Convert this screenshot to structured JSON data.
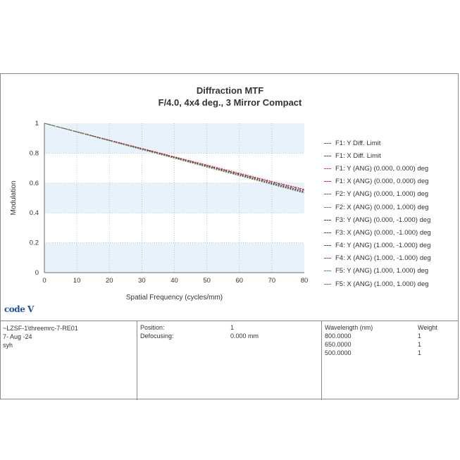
{
  "chart_data": {
    "type": "line",
    "title": "Diffraction MTF",
    "subtitle": "F/4.0, 4x4 deg., 3 Mirror Compact",
    "xlabel": "Spatial Frequency (cycles/mm)",
    "ylabel": "Modulation",
    "xlim": [
      0,
      80
    ],
    "ylim": [
      0,
      1
    ],
    "xticks": [
      "0",
      "10",
      "20",
      "30",
      "40",
      "50",
      "60",
      "70",
      "80"
    ],
    "yticks": [
      "0",
      "0.2",
      "0.4",
      "0.6",
      "0.8",
      "1"
    ],
    "legend_position": "right",
    "x": [
      0,
      10,
      20,
      30,
      40,
      50,
      60,
      70,
      80
    ],
    "series": [
      {
        "name": "F1: Y Diff. Limit",
        "color": "#3b5fb0",
        "values": [
          1,
          0.943,
          0.886,
          0.83,
          0.773,
          0.717,
          0.661,
          0.606,
          0.552
        ]
      },
      {
        "name": "F1: X Diff. Limit",
        "color": "#8b3a3a",
        "values": [
          1,
          0.943,
          0.886,
          0.83,
          0.773,
          0.717,
          0.661,
          0.606,
          0.552
        ]
      },
      {
        "name": "F1: Y (ANG) (0.000, 0.000) deg",
        "color": "#d94040",
        "values": [
          1,
          0.944,
          0.888,
          0.832,
          0.776,
          0.721,
          0.666,
          0.611,
          0.558
        ]
      },
      {
        "name": "F1: X (ANG) (0.000, 0.000) deg",
        "color": "#c03030",
        "values": [
          1,
          0.944,
          0.888,
          0.832,
          0.776,
          0.721,
          0.666,
          0.611,
          0.558
        ]
      },
      {
        "name": "F2: Y (ANG) (0.000, 1.000) deg",
        "color": "#2e8b3a",
        "values": [
          1,
          0.942,
          0.884,
          0.826,
          0.768,
          0.71,
          0.652,
          0.595,
          0.538
        ]
      },
      {
        "name": "F2: X (ANG) (0.000, 1.000) deg",
        "color": "#9b7a2a",
        "values": [
          1,
          0.943,
          0.885,
          0.828,
          0.771,
          0.714,
          0.657,
          0.6,
          0.545
        ]
      },
      {
        "name": "F3: Y (ANG) (0.000, -1.000) deg",
        "color": "#1f3f8f",
        "values": [
          1,
          0.942,
          0.884,
          0.827,
          0.769,
          0.711,
          0.654,
          0.597,
          0.54
        ]
      },
      {
        "name": "F3: X (ANG) (0.000, -1.000) deg",
        "color": "#7a2e6e",
        "values": [
          1,
          0.943,
          0.885,
          0.828,
          0.771,
          0.714,
          0.657,
          0.6,
          0.544
        ]
      },
      {
        "name": "F4: Y (ANG) (1.000, -1.000) deg",
        "color": "#4a4aa0",
        "values": [
          1,
          0.942,
          0.883,
          0.825,
          0.767,
          0.709,
          0.651,
          0.593,
          0.536
        ]
      },
      {
        "name": "F4: X (ANG) (1.000, -1.000) deg",
        "color": "#a03a6a",
        "values": [
          1,
          0.942,
          0.884,
          0.826,
          0.768,
          0.71,
          0.652,
          0.595,
          0.538
        ]
      },
      {
        "name": "F5: Y (ANG) (1.000, 1.000) deg",
        "color": "#3a9a5a",
        "values": [
          1,
          0.941,
          0.882,
          0.823,
          0.765,
          0.706,
          0.648,
          0.59,
          0.532
        ]
      },
      {
        "name": "F5: X (ANG) (1.000, 1.000) deg",
        "color": "#6a8a2a",
        "values": [
          1,
          0.942,
          0.883,
          0.825,
          0.767,
          0.709,
          0.651,
          0.593,
          0.535
        ]
      }
    ]
  },
  "colors": {
    "band": "#e8f2fb",
    "grid": "#9bb8d8",
    "axis": "#6b6b6b"
  },
  "logo": {
    "text": "code V",
    "icon": "codev-logo"
  },
  "info": {
    "file": "~LZSF-1\\threemrc-7-RE01",
    "date": "7- Aug -24",
    "user": "syh",
    "position_label": "Position:",
    "position_value": "1",
    "defocus_label": "Defocusing:",
    "defocus_value": "0.000 mm",
    "wavelength_header": "Wavelength (nm)",
    "weight_header": "Weight",
    "wavelengths": [
      {
        "nm": "800.0000",
        "weight": "1"
      },
      {
        "nm": "650.0000",
        "weight": "1"
      },
      {
        "nm": "500.0000",
        "weight": "1"
      }
    ]
  }
}
